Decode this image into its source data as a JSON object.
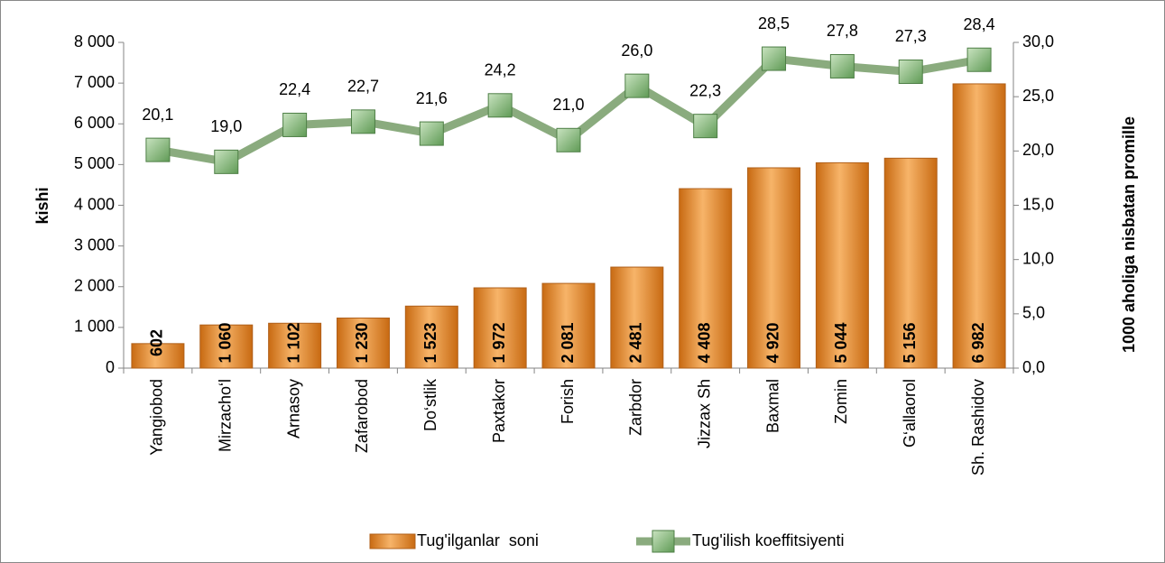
{
  "chart_data": {
    "type": "bar",
    "categories": [
      "Yangiobod",
      "Mirzacho‘l",
      "Arnasoy",
      "Zafarobod",
      "Do‘stlik",
      "Paxtakor",
      "Forish",
      "Zarbdor",
      "Jizzax Sh",
      "Baxmal",
      "Zomin",
      "G‘allaorol",
      "Sh. Rashidov"
    ],
    "series": [
      {
        "name": "Tug'ilganlar  soni",
        "type": "bar",
        "color": "#e8902a",
        "values": [
          602,
          1060,
          1102,
          1230,
          1523,
          1972,
          2081,
          2481,
          4408,
          4920,
          5044,
          5156,
          6982
        ],
        "value_labels": [
          "602",
          "1 060",
          "1 102",
          "1 230",
          "1 523",
          "1 972",
          "2 081",
          "2 481",
          "4 408",
          "4 920",
          "5 044",
          "5 156",
          "6 982"
        ]
      },
      {
        "name": "Tug'ilish koeffitsiyenti",
        "type": "line",
        "axis": "y2",
        "color": "#8aab7e",
        "values": [
          20.1,
          19.0,
          22.4,
          22.7,
          21.6,
          24.2,
          21.0,
          26.0,
          22.3,
          28.5,
          27.8,
          27.3,
          28.4
        ],
        "value_labels": [
          "20,1",
          "19,0",
          "22,4",
          "22,7",
          "21,6",
          "24,2",
          "21,0",
          "26,0",
          "22,3",
          "28,5",
          "27,8",
          "27,3",
          "28,4"
        ]
      }
    ],
    "ylabel": "kishi",
    "y2label": "1000 aholiga nisbatan promille",
    "ylim": [
      0,
      8000
    ],
    "yticks": [
      0,
      {
        "value": 1000,
        "label": "1 000"
      },
      {
        "value": 2000,
        "label": "2 000"
      },
      {
        "value": 3000,
        "label": "3 000"
      },
      {
        "value": 4000,
        "label": "4 000"
      },
      {
        "value": 5000,
        "label": "5 000"
      },
      {
        "value": 6000,
        "label": "6 000"
      },
      {
        "value": 7000,
        "label": "7 000"
      },
      {
        "value": 8000,
        "label": "8 000"
      }
    ],
    "y2lim": [
      0,
      30
    ],
    "y2ticks": [
      {
        "value": 0,
        "label": "0,0"
      },
      {
        "value": 5,
        "label": "5,0"
      },
      {
        "value": 10,
        "label": "10,0"
      },
      {
        "value": 15,
        "label": "15,0"
      },
      {
        "value": 20,
        "label": "20,0"
      },
      {
        "value": 25,
        "label": "25,0"
      },
      {
        "value": 30,
        "label": "30,0"
      }
    ],
    "legend": "bottom"
  }
}
